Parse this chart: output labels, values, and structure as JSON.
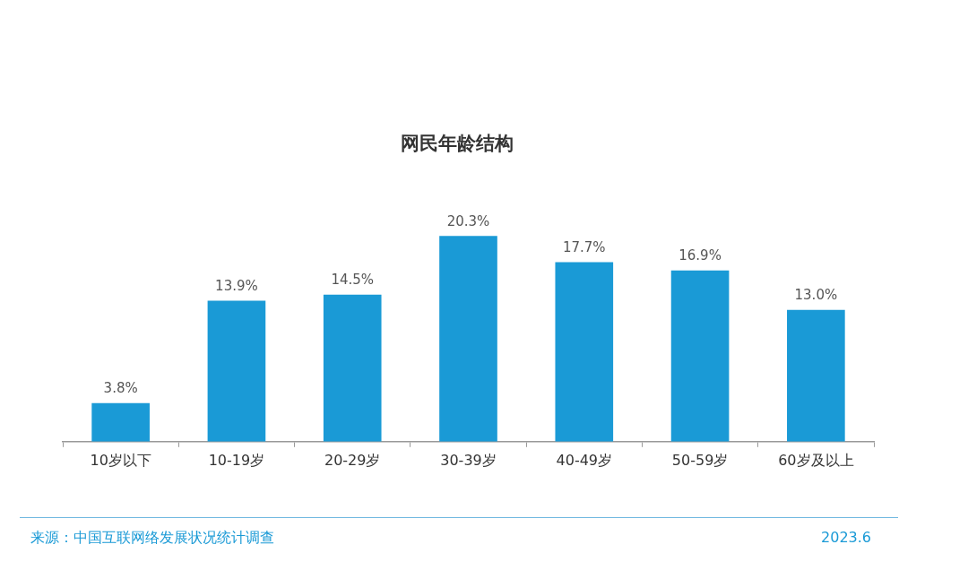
{
  "chart_data": {
    "type": "bar",
    "title": "网民年龄结构",
    "categories": [
      "10岁以下",
      "10-19岁",
      "20-29岁",
      "30-39岁",
      "40-49岁",
      "50-59岁",
      "60岁及以上"
    ],
    "values": [
      3.8,
      13.9,
      14.5,
      20.3,
      17.7,
      16.9,
      13.0
    ],
    "value_labels": [
      "3.8%",
      "13.9%",
      "14.5%",
      "20.3%",
      "17.7%",
      "16.9%",
      "13.0%"
    ],
    "color": "#1a9ad6",
    "annotations": [
      "来源：中国互联网络发展状况统计调查",
      "2023.6"
    ]
  }
}
